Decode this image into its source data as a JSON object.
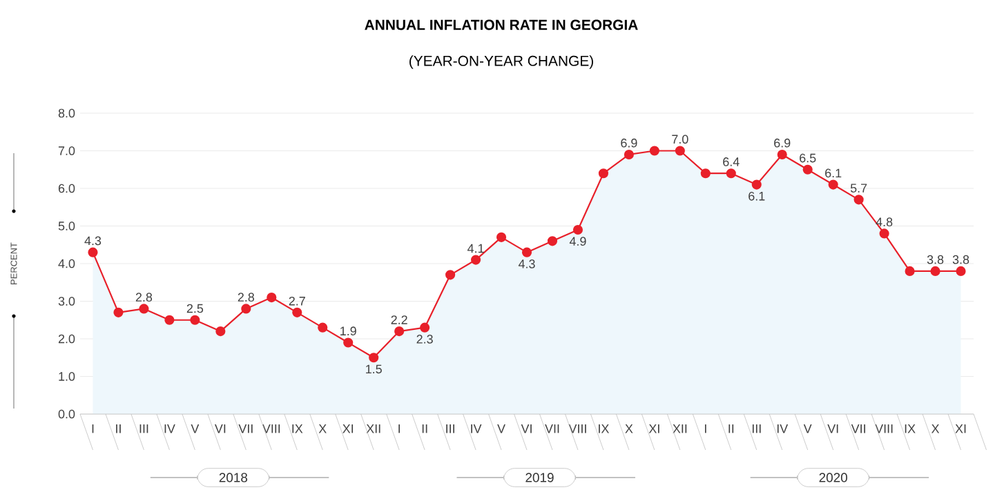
{
  "chart_data": {
    "type": "area",
    "title": "ANNUAL INFLATION RATE IN GEORGIA",
    "subtitle": "(YEAR-ON-YEAR CHANGE)",
    "ylabel": "PERCENT",
    "categories": [
      "I",
      "II",
      "III",
      "IV",
      "V",
      "VI",
      "VII",
      "VIII",
      "IX",
      "X",
      "XI",
      "XII",
      "I",
      "II",
      "III",
      "IV",
      "V",
      "VI",
      "VII",
      "VIII",
      "IX",
      "X",
      "XI",
      "XII",
      "I",
      "II",
      "III",
      "IV",
      "V",
      "VI",
      "VII",
      "VIII",
      "IX",
      "X",
      "XI"
    ],
    "series": [
      {
        "color": "#e8202a",
        "values": [
          4.3,
          2.7,
          2.8,
          2.5,
          2.5,
          2.2,
          2.8,
          3.1,
          2.7,
          2.3,
          1.9,
          1.5,
          2.2,
          2.3,
          3.7,
          4.1,
          4.7,
          4.3,
          4.6,
          4.9,
          6.4,
          6.9,
          7.0,
          7.0,
          6.4,
          6.4,
          6.1,
          6.9,
          6.5,
          6.1,
          5.7,
          4.8,
          3.8,
          3.8,
          3.8
        ],
        "value_labels": [
          "4.3",
          null,
          "2.8",
          null,
          "2.5",
          null,
          "2.8",
          null,
          "2.7",
          null,
          "1.9",
          "1.5",
          "2.2",
          "2.3",
          null,
          "4.1",
          null,
          "4.3",
          null,
          "4.9",
          null,
          "6.9",
          null,
          "7.0",
          null,
          "6.4",
          "6.1",
          "6.9",
          "6.5",
          "6.1",
          "5.7",
          "4.8",
          null,
          "3.8",
          "3.8"
        ]
      }
    ],
    "ylim": [
      0,
      8
    ],
    "yticks": [
      {
        "value": 0,
        "label": "0.0"
      },
      {
        "value": 1,
        "label": "1.0"
      },
      {
        "value": 2,
        "label": "2.0"
      },
      {
        "value": 3,
        "label": "3.0"
      },
      {
        "value": 4,
        "label": "4.0"
      },
      {
        "value": 5,
        "label": "5.0"
      },
      {
        "value": 6,
        "label": "6.0"
      },
      {
        "value": 7,
        "label": "7.0"
      },
      {
        "value": 8,
        "label": "8.0"
      }
    ],
    "grid": "y",
    "marker": "circle",
    "line_style": "solid",
    "annotations": [
      "2018",
      "2019",
      "2020"
    ]
  }
}
